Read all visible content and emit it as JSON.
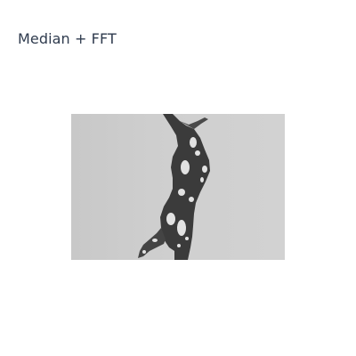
{
  "panel": {
    "title": "Median + FFT"
  },
  "image": {
    "name": "filtered-grayscale-image",
    "background_color": "#c9c9c9",
    "shape_color": "#3a3a3a",
    "highlight_color": "#e7e7e7"
  }
}
